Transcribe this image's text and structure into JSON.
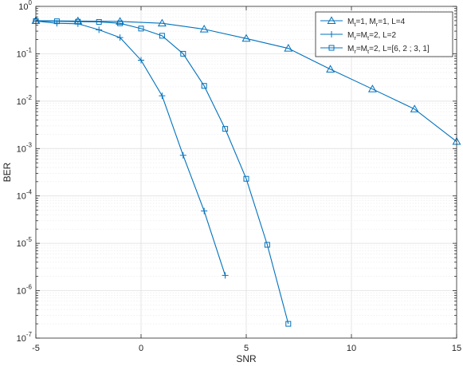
{
  "chart_data": {
    "type": "line",
    "title": "",
    "xlabel": "SNR",
    "ylabel": "BER",
    "x_scale": "linear",
    "y_scale": "log",
    "xlim": [
      -5,
      15
    ],
    "ylim": [
      1e-07,
      1
    ],
    "x_ticks": [
      "-5",
      "0",
      "5",
      "10",
      "15"
    ],
    "y_ticks": [
      {
        "base": "10",
        "exp": "-7"
      },
      {
        "base": "10",
        "exp": "-6"
      },
      {
        "base": "10",
        "exp": "-5"
      },
      {
        "base": "10",
        "exp": "-4"
      },
      {
        "base": "10",
        "exp": "-3"
      },
      {
        "base": "10",
        "exp": "-2"
      },
      {
        "base": "10",
        "exp": "-1"
      },
      {
        "base": "10",
        "exp": "0"
      }
    ],
    "grid": true,
    "minor_grid": true,
    "legend_position": "top-right",
    "color": "#0072bd",
    "series": [
      {
        "name": "M_t=1, M_r=1, L=4",
        "legend_parts": [
          {
            "t": "M",
            "sub": false
          },
          {
            "t": "t",
            "sub": true
          },
          {
            "t": "=1, M",
            "sub": false
          },
          {
            "t": "r",
            "sub": true
          },
          {
            "t": "=1, L=4",
            "sub": false
          }
        ],
        "marker": "triangle",
        "x": [
          -5,
          -3,
          -1,
          1,
          3,
          5,
          7,
          9,
          11,
          13,
          15
        ],
        "y": [
          0.5,
          0.49,
          0.48,
          0.44,
          0.33,
          0.21,
          0.13,
          0.047,
          0.018,
          0.0068,
          0.0014
        ]
      },
      {
        "name": "M_r=M_t=2, L=2",
        "legend_parts": [
          {
            "t": "M",
            "sub": false
          },
          {
            "t": "r",
            "sub": true
          },
          {
            "t": "=M",
            "sub": false
          },
          {
            "t": "t",
            "sub": true
          },
          {
            "t": "=2, L=2",
            "sub": false
          }
        ],
        "marker": "plus",
        "x": [
          -5,
          -4,
          -3,
          -2,
          -1,
          0,
          1,
          2,
          3,
          4
        ],
        "y": [
          0.49,
          0.44,
          0.43,
          0.32,
          0.22,
          0.073,
          0.013,
          0.00072,
          4.8e-05,
          2.1e-06
        ]
      },
      {
        "name": "M_r=M_t=2, L=[6, 2 ; 3, 1]",
        "legend_parts": [
          {
            "t": "M",
            "sub": false
          },
          {
            "t": "r",
            "sub": true
          },
          {
            "t": "=M",
            "sub": false
          },
          {
            "t": "t",
            "sub": true
          },
          {
            "t": "=2, L=[6, 2 ; 3, 1]",
            "sub": false
          }
        ],
        "marker": "square",
        "x": [
          -5,
          -4,
          -3,
          -2,
          -1,
          0,
          1,
          2,
          3,
          4,
          5,
          6,
          7
        ],
        "y": [
          0.49,
          0.485,
          0.475,
          0.47,
          0.44,
          0.34,
          0.24,
          0.1,
          0.021,
          0.0026,
          0.00023,
          9.3e-06,
          2e-07
        ]
      }
    ]
  }
}
